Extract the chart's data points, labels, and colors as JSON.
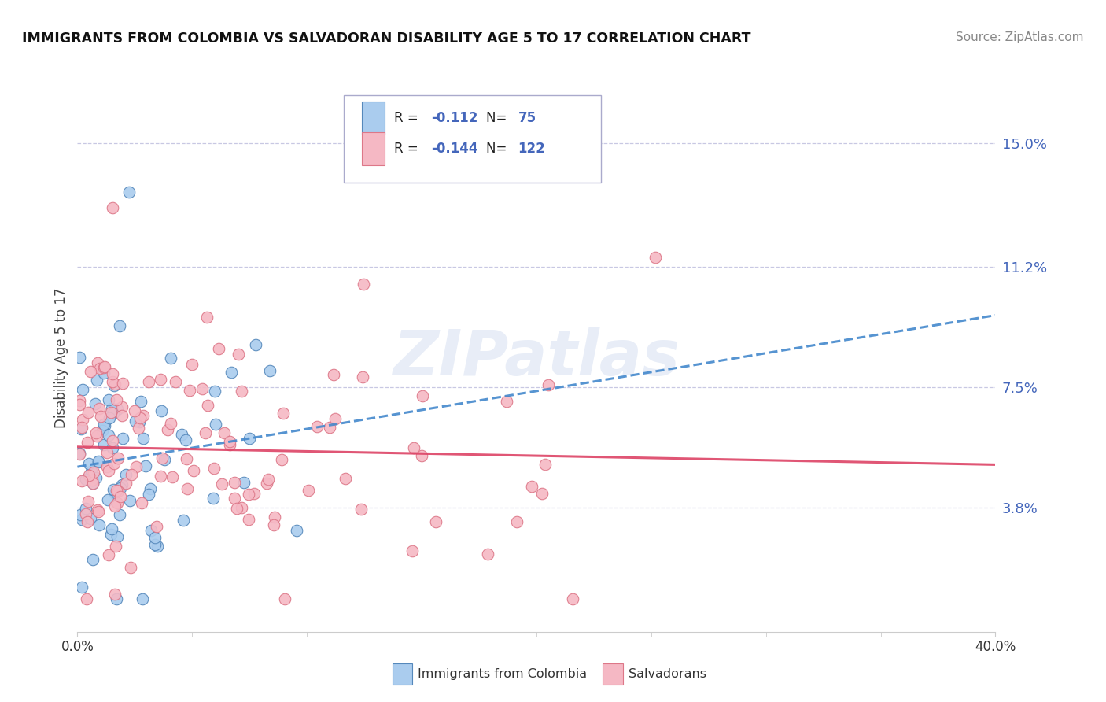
{
  "title": "IMMIGRANTS FROM COLOMBIA VS SALVADORAN DISABILITY AGE 5 TO 17 CORRELATION CHART",
  "source": "Source: ZipAtlas.com",
  "ylabel": "Disability Age 5 to 17",
  "ytick_labels": [
    "3.8%",
    "7.5%",
    "11.2%",
    "15.0%"
  ],
  "ytick_values": [
    0.038,
    0.075,
    0.112,
    0.15
  ],
  "xlim": [
    0.0,
    0.4
  ],
  "ylim": [
    0.0,
    0.168
  ],
  "colombia_R": "-0.112",
  "colombia_N": "75",
  "salvador_R": "-0.144",
  "salvador_N": "122",
  "colombia_color": "#aaccee",
  "colombia_edge": "#5588bb",
  "salvador_color": "#f5b8c4",
  "salvador_edge": "#dd7788",
  "colombia_line_color": "#4488cc",
  "salvador_line_color": "#dd4466",
  "watermark_text": "ZIPatlas",
  "legend_label1": "Immigrants from Colombia",
  "legend_label2": "Salvadorans",
  "background_color": "#ffffff",
  "grid_color": "#bbbbdd",
  "title_color": "#111111",
  "source_color": "#888888",
  "tick_color": "#4466bb",
  "bottom_label_color": "#333333"
}
